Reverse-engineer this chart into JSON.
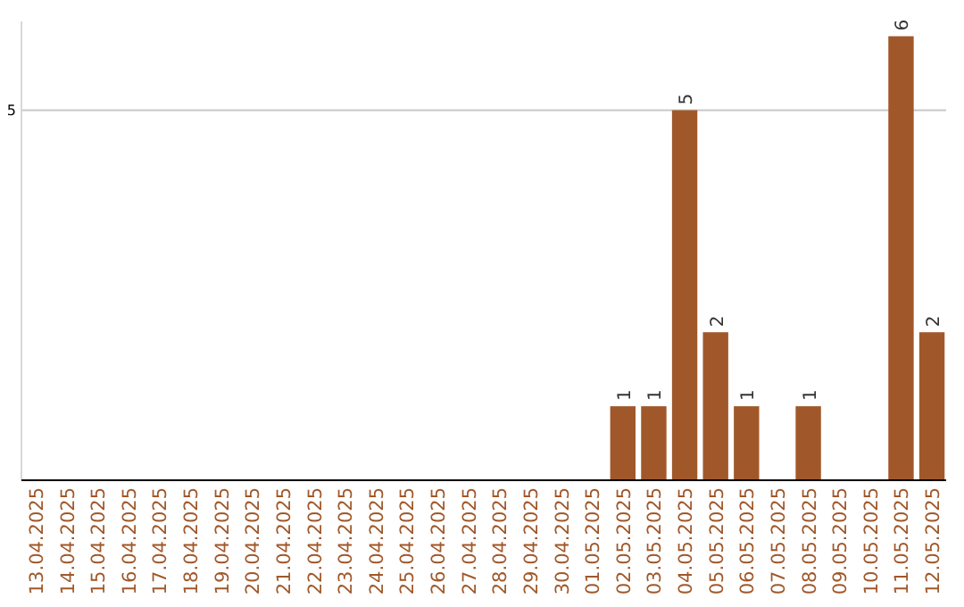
{
  "chart_data": {
    "type": "bar",
    "categories": [
      "13.04.2025",
      "14.04.2025",
      "15.04.2025",
      "16.04.2025",
      "17.04.2025",
      "18.04.2025",
      "19.04.2025",
      "20.04.2025",
      "21.04.2025",
      "22.04.2025",
      "23.04.2025",
      "24.04.2025",
      "25.04.2025",
      "26.04.2025",
      "27.04.2025",
      "28.04.2025",
      "29.04.2025",
      "30.04.2025",
      "01.05.2025",
      "02.05.2025",
      "03.05.2025",
      "04.05.2025",
      "05.05.2025",
      "06.05.2025",
      "07.05.2025",
      "08.05.2025",
      "09.05.2025",
      "10.05.2025",
      "11.05.2025",
      "12.05.2025"
    ],
    "values": [
      null,
      null,
      null,
      null,
      null,
      null,
      null,
      null,
      null,
      null,
      null,
      null,
      null,
      null,
      null,
      null,
      null,
      null,
      null,
      1,
      1,
      5,
      2,
      1,
      null,
      1,
      null,
      null,
      6,
      2
    ],
    "data_labels": true,
    "color": "#a0582a",
    "ylim": [
      0,
      6.2
    ],
    "yticks": [
      5
    ],
    "grid": "y"
  }
}
